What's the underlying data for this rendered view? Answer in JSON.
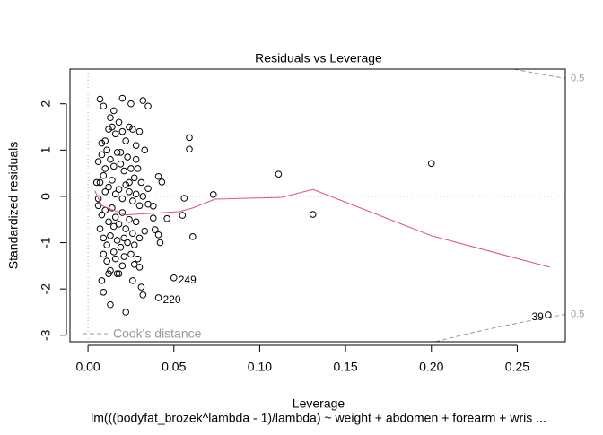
{
  "chart_data": {
    "type": "scatter",
    "title": "Residuals vs Leverage",
    "x_label": "Leverage",
    "subtitle": "lm(((bodyfat_brozek^lambda - 1)/lambda) ~ weight + abdomen + forearm + wris ...",
    "y_label": "Standardized residuals",
    "xlim": [
      -0.0105,
      0.278
    ],
    "ylim": [
      -3.14,
      2.75
    ],
    "xticks": [
      {
        "value": 0,
        "label": "0.00"
      },
      {
        "value": 0.05,
        "label": "0.05"
      },
      {
        "value": 0.1,
        "label": "0.10"
      },
      {
        "value": 0.15,
        "label": "0.15"
      },
      {
        "value": 0.2,
        "label": "0.20"
      },
      {
        "value": 0.25,
        "label": "0.25"
      }
    ],
    "yticks": [
      -3,
      -2,
      -1,
      0,
      1,
      2
    ],
    "reference_lines": {
      "h": 0,
      "v": 0
    },
    "x": [
      0.007,
      0.009,
      0.02,
      0.025,
      0.032,
      0.035,
      0.015,
      0.059,
      0.059,
      0.041,
      0.043,
      0.056,
      0.073,
      0.111,
      0.2,
      0.131,
      0.055,
      0.046,
      0.061,
      0.041,
      0.042,
      0.05,
      0.041,
      0.022,
      0.013,
      0.009,
      0.268,
      0.032,
      0.031,
      0.026,
      0.03,
      0.027,
      0.018,
      0.017,
      0.012,
      0.008,
      0.038,
      0.039,
      0.035,
      0.035,
      0.038,
      0.006,
      0.008,
      0.01,
      0.012,
      0.014,
      0.016,
      0.018,
      0.02,
      0.022,
      0.024,
      0.026,
      0.028,
      0.03,
      0.033,
      0.011,
      0.013,
      0.015,
      0.017,
      0.019,
      0.021,
      0.023,
      0.025,
      0.027,
      0.029,
      0.031,
      0.009,
      0.007,
      0.005,
      0.01,
      0.012,
      0.014,
      0.016,
      0.018,
      0.02,
      0.022,
      0.024,
      0.026,
      0.028,
      0.03,
      0.032,
      0.006,
      0.008,
      0.01,
      0.012,
      0.014,
      0.016,
      0.018,
      0.02,
      0.022,
      0.024,
      0.026,
      0.028,
      0.03,
      0.033,
      0.007,
      0.009,
      0.011,
      0.013,
      0.015,
      0.017,
      0.019,
      0.021,
      0.023,
      0.025,
      0.027,
      0.029,
      0.011,
      0.013,
      0.016,
      0.02,
      0.006,
      0.01,
      0.019,
      0.024,
      0.013,
      0.008,
      0.028,
      0.015,
      0.021,
      0.009
    ],
    "y": [
      2.1,
      1.95,
      2.12,
      2.0,
      2.07,
      1.95,
      1.85,
      1.27,
      1.02,
      0.43,
      0.31,
      -0.04,
      0.04,
      0.48,
      0.71,
      -0.39,
      -0.41,
      -0.48,
      -0.87,
      -0.83,
      -1.0,
      -1.76,
      -2.19,
      -2.5,
      -2.34,
      -2.07,
      -2.56,
      -2.13,
      -1.96,
      -1.82,
      -1.53,
      -1.47,
      -1.67,
      -1.67,
      -1.67,
      -1.82,
      -0.47,
      -0.72,
      0.17,
      -0.17,
      -0.21,
      0.75,
      0.9,
      1.2,
      1.45,
      1.5,
      1.35,
      1.6,
      1.4,
      1.2,
      1.5,
      1.45,
      1.1,
      1.4,
      1.0,
      1.0,
      0.8,
      0.65,
      0.95,
      0.7,
      0.55,
      0.85,
      0.6,
      0.4,
      0.6,
      0.3,
      0.45,
      0.3,
      0.3,
      0.1,
      0.2,
      0.35,
      0.05,
      0.15,
      -0.05,
      0.25,
      0.1,
      -0.1,
      0.05,
      -0.2,
      0.0,
      -0.2,
      -0.4,
      -0.3,
      -0.55,
      -0.25,
      -0.45,
      -0.6,
      -0.35,
      -0.7,
      -0.5,
      -0.8,
      -0.55,
      -0.9,
      -0.75,
      -0.7,
      -0.9,
      -1.05,
      -0.85,
      -1.2,
      -0.95,
      -1.1,
      -1.3,
      -1.0,
      -1.25,
      -1.05,
      -1.35,
      -1.4,
      -1.6,
      -1.35,
      -1.5,
      -0.05,
      0.6,
      0.95,
      0.3,
      1.7,
      1.15,
      0.8,
      -0.65,
      -0.9,
      -1.25
    ],
    "smooth": {
      "color": "#df536b",
      "x": [
        0.004,
        0.008,
        0.022,
        0.053,
        0.061,
        0.074,
        0.113,
        0.131,
        0.2,
        0.269
      ],
      "y": [
        0.12,
        -0.2,
        -0.4,
        -0.33,
        -0.25,
        -0.06,
        -0.02,
        0.15,
        -0.85,
        -1.53
      ]
    },
    "annotations": [
      {
        "text": "249",
        "x": 0.05,
        "y": -1.76,
        "side": "right"
      },
      {
        "text": "220",
        "x": 0.041,
        "y": -2.19,
        "side": "right"
      },
      {
        "text": "39",
        "x": 0.268,
        "y": -2.56,
        "side": "left"
      }
    ],
    "cooks_distance": {
      "legend": "Cook's distance",
      "color": "#999999",
      "level_label": "0.5",
      "upper": {
        "x": [
          0.248,
          0.26,
          0.27,
          0.278
        ],
        "y": [
          2.75,
          2.667,
          2.6,
          2.548
        ]
      },
      "lower": {
        "x": [
          0.2023,
          0.22,
          0.24,
          0.26,
          0.278
        ],
        "y": [
          -3.14,
          -2.977,
          -2.814,
          -2.667,
          -2.548
        ]
      }
    }
  }
}
